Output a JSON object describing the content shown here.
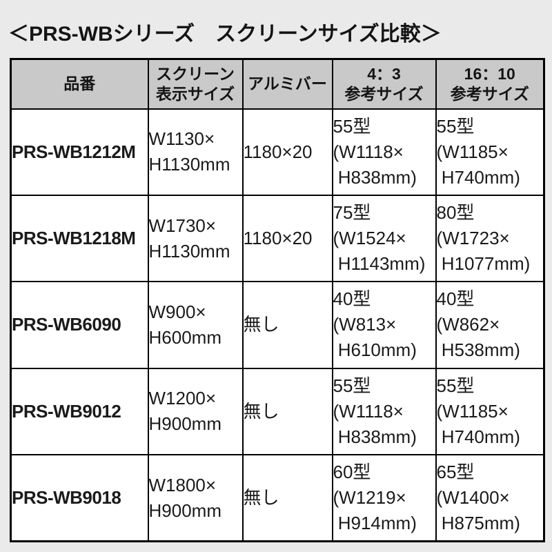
{
  "page": {
    "background_color": "#eaeaea",
    "text_color": "#141414"
  },
  "title": "＜PRS-WBシリーズ　スクリーンサイズ比較＞",
  "table": {
    "header_bg_color": "#c9c9c9",
    "cell_bg_color": "#ffffff",
    "border_color": "#000000",
    "columns": [
      {
        "key": "model",
        "label": "品番"
      },
      {
        "key": "screen_size",
        "label": "スクリーン\n表示サイズ"
      },
      {
        "key": "alumi_bar",
        "label": "アルミバー"
      },
      {
        "key": "ref_4_3",
        "label": "4：3\n参考サイズ"
      },
      {
        "key": "ref_16_10",
        "label": "16：10\n参考サイズ"
      }
    ],
    "rows": [
      {
        "model": "PRS-WB1212M",
        "screen_size": "W1130×\nH1130mm",
        "alumi_bar": "1180×20",
        "ref_4_3": "55型\n(W1118×\n H838mm)",
        "ref_16_10": "55型\n(W1185×\n H740mm)"
      },
      {
        "model": "PRS-WB1218M",
        "screen_size": "W1730×\nH1130mm",
        "alumi_bar": "1180×20",
        "ref_4_3": "75型\n(W1524×\n H1143mm)",
        "ref_16_10": "80型\n(W1723×\n H1077mm)"
      },
      {
        "model": "PRS-WB6090",
        "screen_size": "W900×\nH600mm",
        "alumi_bar": "無し",
        "ref_4_3": "40型\n(W813×\n H610mm)",
        "ref_16_10": "40型\n(W862×\n H538mm)"
      },
      {
        "model": "PRS-WB9012",
        "screen_size": "W1200×\nH900mm",
        "alumi_bar": "無し",
        "ref_4_3": "55型\n(W1118×\n H838mm)",
        "ref_16_10": "55型\n(W1185×\n H740mm)"
      },
      {
        "model": "PRS-WB9018",
        "screen_size": "W1800×\nH900mm",
        "alumi_bar": "無し",
        "ref_4_3": "60型\n(W1219×\n H914mm)",
        "ref_16_10": "65型\n(W1400×\n H875mm)"
      }
    ]
  }
}
